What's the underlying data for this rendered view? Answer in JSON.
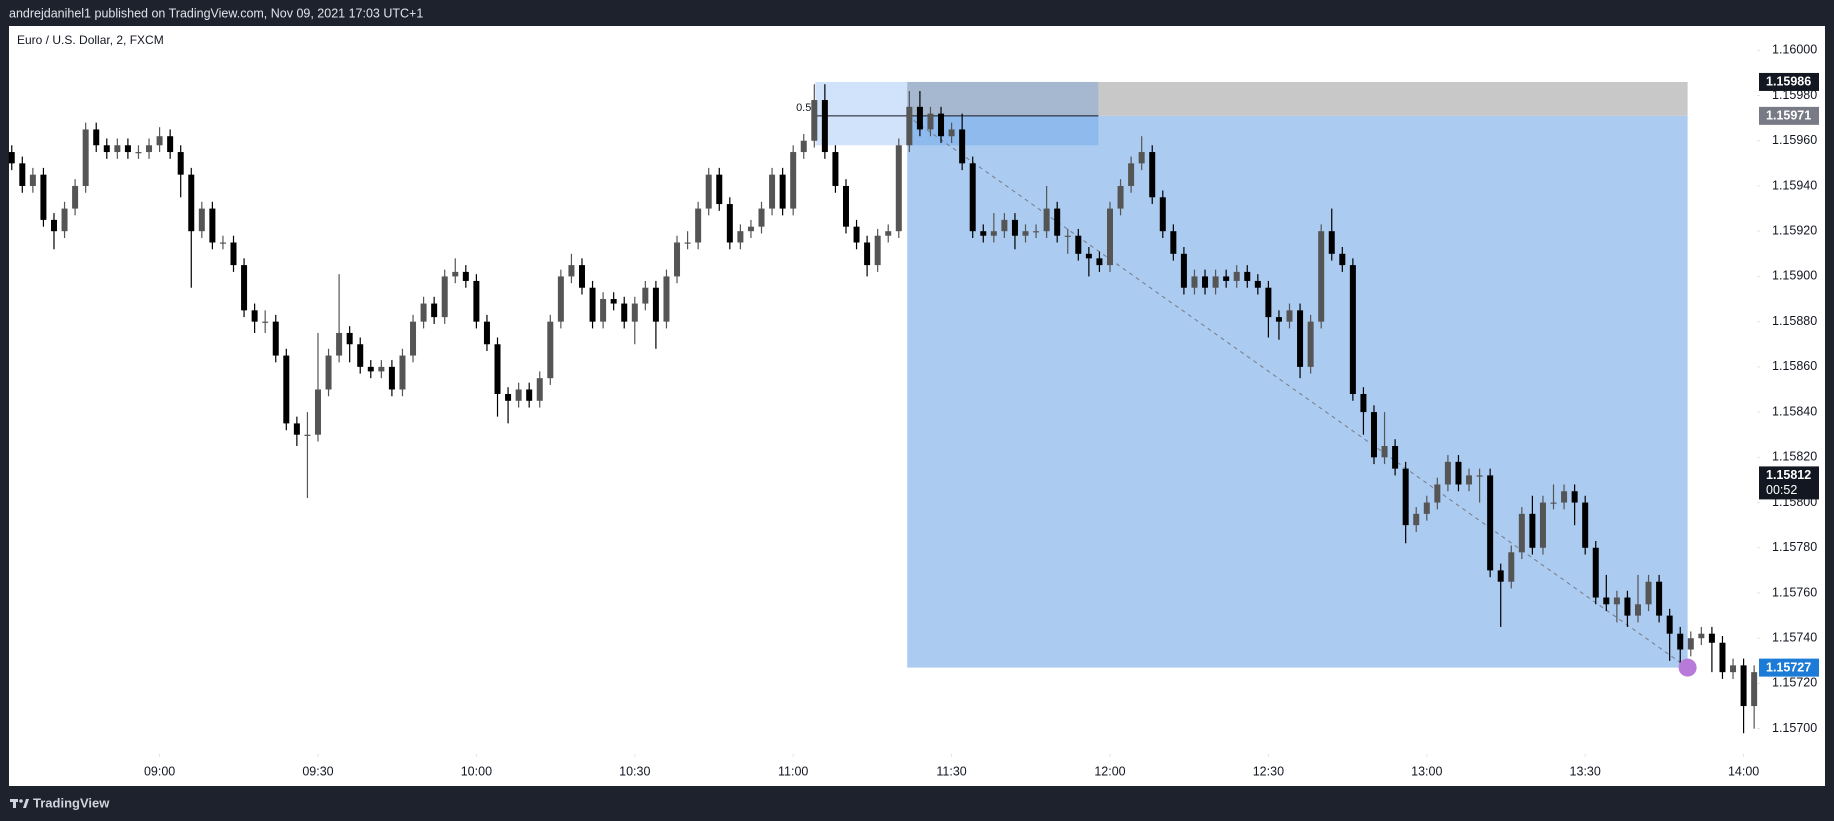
{
  "header": {
    "text": "andrejdanihel1 published on TradingView.com, Nov 09, 2021 17:03 UTC+1"
  },
  "footer": {
    "brand": "TradingView"
  },
  "chart_data": {
    "type": "candlestick",
    "title": "Euro / U.S. Dollar, 2, FXCM",
    "up_color": "#555555",
    "down_color": "#000000",
    "open": [
      1.15955,
      1.1595,
      1.1594,
      1.15945,
      1.15925,
      1.1592,
      1.1593,
      1.1594,
      1.15965,
      1.15958,
      1.15955,
      1.15958,
      1.15955,
      1.15955,
      1.15958,
      1.15962,
      1.15955,
      1.15945,
      1.1592,
      1.1593,
      1.15915,
      1.15915,
      1.15905,
      1.15885,
      1.1588,
      1.1588,
      1.15865,
      1.15835,
      1.1583,
      1.1583,
      1.1585,
      1.15865,
      1.15875,
      1.1587,
      1.1586,
      1.15858,
      1.1586,
      1.1585,
      1.15865,
      1.1588,
      1.15888,
      1.15882,
      1.159,
      1.15902,
      1.15898,
      1.1588,
      1.1587,
      1.15848,
      1.15845,
      1.1585,
      1.15845,
      1.15855,
      1.1588,
      1.159,
      1.15905,
      1.15895,
      1.1588,
      1.1589,
      1.15888,
      1.1588,
      1.15888,
      1.15895,
      1.1588,
      1.159,
      1.15915,
      1.15915,
      1.1593,
      1.15945,
      1.15932,
      1.15915,
      1.1592,
      1.15922,
      1.1593,
      1.15945,
      1.1593,
      1.15955,
      1.1596,
      1.15978,
      1.15955,
      1.1594,
      1.15922,
      1.15915,
      1.15905,
      1.15918,
      1.1592,
      1.15958,
      1.15975,
      1.15965,
      1.15972,
      1.15962,
      1.15965,
      1.1595,
      1.1592,
      1.15918,
      1.1592,
      1.15925,
      1.15918,
      1.1592,
      1.1592,
      1.1593,
      1.15918,
      1.15918,
      1.1591,
      1.15908,
      1.15905,
      1.1593,
      1.1594,
      1.1595,
      1.15955,
      1.15935,
      1.1592,
      1.1591,
      1.15895,
      1.159,
      1.15895,
      1.159,
      1.15898,
      1.15902,
      1.15898,
      1.15895,
      1.15882,
      1.1588,
      1.15885,
      1.1586,
      1.1588,
      1.1592,
      1.1591,
      1.15905,
      1.15848,
      1.1584,
      1.1582,
      1.15825,
      1.15815,
      1.1579,
      1.15795,
      1.158,
      1.15808,
      1.15818,
      1.15808,
      1.15812,
      1.15812,
      1.1577,
      1.15765,
      1.15778,
      1.15795,
      1.1578,
      1.158,
      1.158,
      1.15805,
      1.158,
      1.1578,
      1.15758,
      1.15755,
      1.15758,
      1.1575,
      1.15755,
      1.15765,
      1.1575,
      1.15742,
      1.15735,
      1.1574,
      1.15742,
      1.15738,
      1.15725,
      1.15728,
      1.1571
    ],
    "high": [
      1.15958,
      1.15953,
      1.15948,
      1.15948,
      1.15928,
      1.15933,
      1.15943,
      1.15968,
      1.15968,
      1.15961,
      1.15961,
      1.15961,
      1.15958,
      1.15961,
      1.15966,
      1.15965,
      1.15958,
      1.15948,
      1.15933,
      1.15933,
      1.15918,
      1.15918,
      1.15908,
      1.15888,
      1.15885,
      1.15883,
      1.15868,
      1.15838,
      1.1584,
      1.15875,
      1.15868,
      1.15901,
      1.15878,
      1.15873,
      1.15863,
      1.15863,
      1.15863,
      1.15868,
      1.15883,
      1.15891,
      1.15891,
      1.15903,
      1.15908,
      1.15905,
      1.15901,
      1.15883,
      1.15873,
      1.15851,
      1.15853,
      1.15853,
      1.15858,
      1.15883,
      1.15903,
      1.1591,
      1.15908,
      1.15898,
      1.15893,
      1.15893,
      1.15891,
      1.15891,
      1.15898,
      1.15898,
      1.15903,
      1.15918,
      1.1592,
      1.15933,
      1.15948,
      1.15948,
      1.15935,
      1.15923,
      1.15925,
      1.15933,
      1.15948,
      1.15948,
      1.15958,
      1.15963,
      1.15985,
      1.15985,
      1.15958,
      1.15943,
      1.15925,
      1.15918,
      1.15921,
      1.15923,
      1.15961,
      1.15982,
      1.15982,
      1.15975,
      1.15975,
      1.15968,
      1.15972,
      1.15953,
      1.15923,
      1.15928,
      1.15928,
      1.15928,
      1.15923,
      1.15923,
      1.1594,
      1.15933,
      1.15921,
      1.15921,
      1.15913,
      1.15911,
      1.15933,
      1.15943,
      1.15953,
      1.15962,
      1.15958,
      1.15938,
      1.15923,
      1.15913,
      1.15903,
      1.15903,
      1.15903,
      1.15903,
      1.15905,
      1.15905,
      1.15901,
      1.15898,
      1.15885,
      1.15888,
      1.15888,
      1.15883,
      1.15923,
      1.1593,
      1.15913,
      1.15908,
      1.15851,
      1.15843,
      1.1584,
      1.15828,
      1.15818,
      1.15798,
      1.15803,
      1.15811,
      1.15821,
      1.15821,
      1.15815,
      1.15815,
      1.15815,
      1.15773,
      1.15781,
      1.15798,
      1.15803,
      1.15803,
      1.15808,
      1.15808,
      1.15808,
      1.15803,
      1.15783,
      1.15768,
      1.15761,
      1.15761,
      1.15768,
      1.15768,
      1.15768,
      1.15753,
      1.15745,
      1.15743,
      1.15745,
      1.15745,
      1.15741,
      1.15731,
      1.15731,
      1.15728
    ],
    "low": [
      1.15947,
      1.15937,
      1.15937,
      1.15922,
      1.15912,
      1.15917,
      1.15927,
      1.15937,
      1.15955,
      1.15952,
      1.15952,
      1.15952,
      1.15952,
      1.15952,
      1.15955,
      1.15952,
      1.15935,
      1.15895,
      1.15917,
      1.15912,
      1.15912,
      1.15902,
      1.15882,
      1.15875,
      1.15875,
      1.15862,
      1.15832,
      1.15825,
      1.15802,
      1.15827,
      1.15847,
      1.15862,
      1.15862,
      1.15857,
      1.15855,
      1.15855,
      1.15847,
      1.15847,
      1.15862,
      1.15877,
      1.15879,
      1.15879,
      1.15897,
      1.15895,
      1.15877,
      1.15867,
      1.15838,
      1.15835,
      1.15842,
      1.15842,
      1.15842,
      1.15852,
      1.15877,
      1.15897,
      1.15892,
      1.15877,
      1.15877,
      1.15885,
      1.15877,
      1.1587,
      1.15885,
      1.15868,
      1.15877,
      1.15897,
      1.15912,
      1.15912,
      1.15927,
      1.15929,
      1.15912,
      1.15912,
      1.15917,
      1.15919,
      1.15927,
      1.15927,
      1.15927,
      1.15952,
      1.15957,
      1.15952,
      1.15937,
      1.15919,
      1.15912,
      1.159,
      1.15902,
      1.15915,
      1.15917,
      1.15955,
      1.15962,
      1.15962,
      1.15959,
      1.15959,
      1.15947,
      1.15917,
      1.15915,
      1.15915,
      1.15917,
      1.15912,
      1.15915,
      1.15917,
      1.15917,
      1.15915,
      1.1591,
      1.15907,
      1.159,
      1.15902,
      1.15902,
      1.15927,
      1.15937,
      1.15947,
      1.15932,
      1.15917,
      1.15907,
      1.15892,
      1.15892,
      1.15892,
      1.15892,
      1.15895,
      1.15895,
      1.15895,
      1.15892,
      1.15873,
      1.15872,
      1.15877,
      1.15855,
      1.15857,
      1.15877,
      1.15907,
      1.15902,
      1.15845,
      1.1583,
      1.15817,
      1.15817,
      1.15812,
      1.15782,
      1.15787,
      1.15792,
      1.15797,
      1.15805,
      1.15805,
      1.15805,
      1.158,
      1.15767,
      1.15745,
      1.15762,
      1.15775,
      1.15777,
      1.15777,
      1.15797,
      1.15797,
      1.1579,
      1.15777,
      1.15755,
      1.15752,
      1.15747,
      1.15745,
      1.15747,
      1.15752,
      1.15747,
      1.1573,
      1.15728,
      1.15732,
      1.15737,
      1.15725,
      1.15722,
      1.15722,
      1.15698,
      1.157
    ],
    "close": [
      1.1595,
      1.1594,
      1.15945,
      1.15925,
      1.1592,
      1.1593,
      1.1594,
      1.15965,
      1.15958,
      1.15955,
      1.15958,
      1.15955,
      1.15955,
      1.15958,
      1.15962,
      1.15955,
      1.15945,
      1.1592,
      1.1593,
      1.15915,
      1.15915,
      1.15905,
      1.15885,
      1.1588,
      1.1588,
      1.15865,
      1.15835,
      1.1583,
      1.1583,
      1.1585,
      1.15865,
      1.15875,
      1.1587,
      1.1586,
      1.15858,
      1.1586,
      1.1585,
      1.15865,
      1.1588,
      1.15888,
      1.15882,
      1.159,
      1.15902,
      1.15898,
      1.1588,
      1.1587,
      1.15848,
      1.15845,
      1.1585,
      1.15845,
      1.15855,
      1.1588,
      1.159,
      1.15905,
      1.15895,
      1.1588,
      1.1589,
      1.15888,
      1.1588,
      1.15888,
      1.15895,
      1.1588,
      1.159,
      1.15915,
      1.15915,
      1.1593,
      1.15945,
      1.15932,
      1.15915,
      1.1592,
      1.15922,
      1.1593,
      1.15945,
      1.1593,
      1.15955,
      1.1596,
      1.15978,
      1.15955,
      1.1594,
      1.15922,
      1.15915,
      1.15905,
      1.15918,
      1.1592,
      1.15958,
      1.15975,
      1.15965,
      1.15972,
      1.15962,
      1.15965,
      1.1595,
      1.1592,
      1.15918,
      1.1592,
      1.15925,
      1.15918,
      1.1592,
      1.1592,
      1.1593,
      1.15918,
      1.15918,
      1.1591,
      1.15908,
      1.15905,
      1.1593,
      1.1594,
      1.1595,
      1.15955,
      1.15935,
      1.1592,
      1.1591,
      1.15895,
      1.159,
      1.15895,
      1.159,
      1.15898,
      1.15902,
      1.15898,
      1.15895,
      1.15882,
      1.1588,
      1.15885,
      1.1586,
      1.1588,
      1.1592,
      1.1591,
      1.15905,
      1.15848,
      1.1584,
      1.1582,
      1.15825,
      1.15815,
      1.1579,
      1.15795,
      1.158,
      1.15808,
      1.15818,
      1.15808,
      1.15812,
      1.15812,
      1.1577,
      1.15765,
      1.15778,
      1.15795,
      1.1578,
      1.158,
      1.158,
      1.15805,
      1.158,
      1.1578,
      1.15758,
      1.15755,
      1.15758,
      1.1575,
      1.15755,
      1.15765,
      1.1575,
      1.15742,
      1.15735,
      1.1574,
      1.15742,
      1.15738,
      1.15725,
      1.15728,
      1.1571,
      1.15725
    ],
    "xlim": [
      -0.26,
      165.27
    ],
    "xticks": [
      {
        "value": 14,
        "label": "09:00"
      },
      {
        "value": 29,
        "label": "09:30"
      },
      {
        "value": 44,
        "label": "10:00"
      },
      {
        "value": 59,
        "label": "10:30"
      },
      {
        "value": 74,
        "label": "11:00"
      },
      {
        "value": 89,
        "label": "11:30"
      },
      {
        "value": 104,
        "label": "12:00"
      },
      {
        "value": 119,
        "label": "12:30"
      },
      {
        "value": 134,
        "label": "13:00"
      },
      {
        "value": 149,
        "label": "13:30"
      },
      {
        "value": 164,
        "label": "14:00"
      }
    ],
    "ylim": [
      1.156888,
      1.160103
    ],
    "yticks": [
      {
        "value": 1.157,
        "label": "1.15700"
      },
      {
        "value": 1.1572,
        "label": "1.15720"
      },
      {
        "value": 1.1574,
        "label": "1.15740"
      },
      {
        "value": 1.1576,
        "label": "1.15760"
      },
      {
        "value": 1.1578,
        "label": "1.15780"
      },
      {
        "value": 1.158,
        "label": "1.15800"
      },
      {
        "value": 1.1582,
        "label": "1.15820"
      },
      {
        "value": 1.1584,
        "label": "1.15840"
      },
      {
        "value": 1.1586,
        "label": "1.15860"
      },
      {
        "value": 1.1588,
        "label": "1.15880"
      },
      {
        "value": 1.159,
        "label": "1.15900"
      },
      {
        "value": 1.1592,
        "label": "1.15920"
      },
      {
        "value": 1.1594,
        "label": "1.15940"
      },
      {
        "value": 1.1596,
        "label": "1.15960"
      },
      {
        "value": 1.1598,
        "label": "1.15980"
      },
      {
        "value": 1.16,
        "label": "1.16000"
      }
    ],
    "grid": false,
    "position": {
      "entry": 1.15971,
      "stop": 1.15986,
      "target": 1.15727,
      "x_start": 84.8,
      "x_end": 158.7,
      "profit_color": "#abcbf0",
      "loss_color": "#c8c8c8"
    },
    "fib_zone": {
      "label": "0.5",
      "level": 1.15971,
      "top": 1.15986,
      "bottom": 1.15958,
      "x_start": 76.1,
      "x_end": 102.9,
      "color": "rgba(41,128,230,0.22)"
    },
    "price_labels": [
      {
        "value": 1.15986,
        "color": "#131722"
      },
      {
        "value": 1.15971,
        "color": "#787b86"
      },
      {
        "value": 1.15812,
        "countdown": "00:52",
        "color": "#131722"
      },
      {
        "value": 1.15727,
        "color": "#1c7bd6"
      }
    ]
  }
}
